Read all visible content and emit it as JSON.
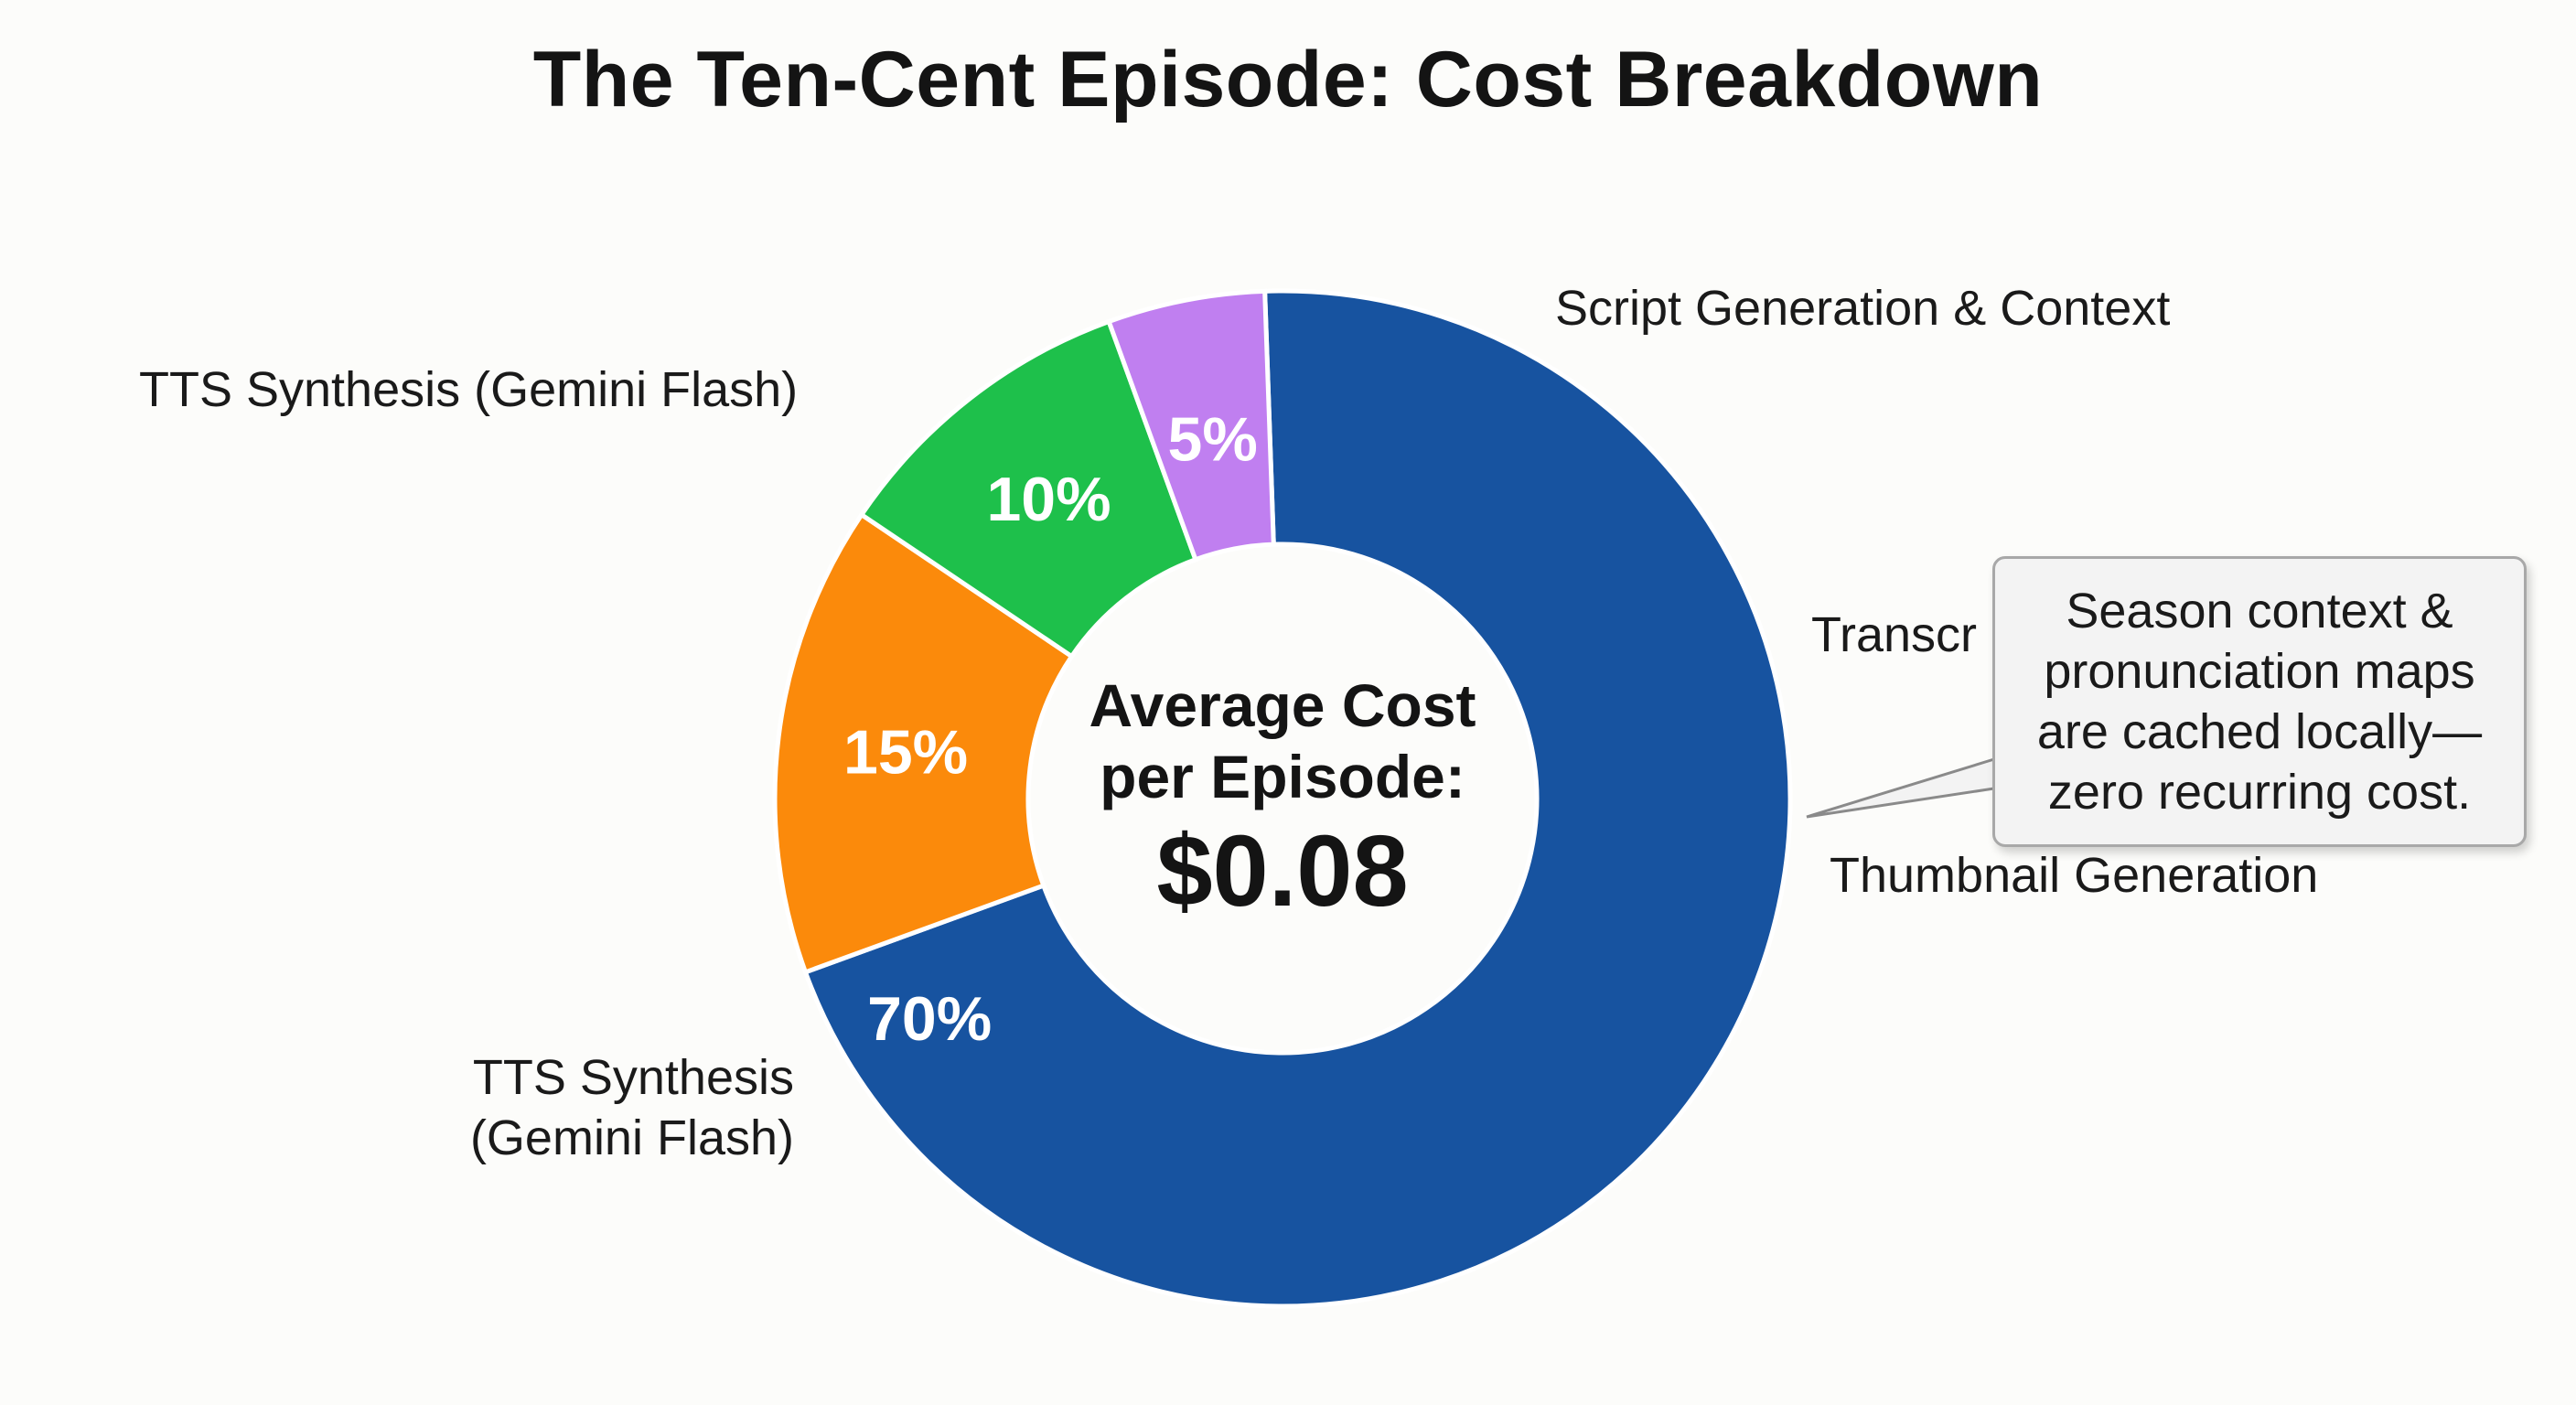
{
  "chart_data": {
    "type": "pie",
    "title": "The Ten-Cent Episode: Cost Breakdown",
    "donut": true,
    "center_text": {
      "caption_lines": [
        "Average Cost",
        "per Episode:"
      ],
      "value": "$0.08"
    },
    "slices": [
      {
        "label": "TTS Synthesis (Gemini Flash)",
        "value": 70,
        "value_label": "70%",
        "color": "#1753a0"
      },
      {
        "label": "Script Generation & Context",
        "value": 15,
        "value_label": "15%",
        "color": "#fb8a0b"
      },
      {
        "label": "Transcr",
        "value": 10,
        "value_label": "10%",
        "color": "#1ec04b"
      },
      {
        "label": "Thumbnail Generation",
        "value": 5,
        "value_label": "5%",
        "color": "#c07ff0"
      }
    ],
    "extra_labels": {
      "tts_top": "TTS Synthesis (Gemini Flash)",
      "tts_bottom_lines": [
        "TTS Synthesis",
        "(Gemini Flash)"
      ]
    },
    "annotation": {
      "lines": [
        "Season context &",
        "pronunciation maps",
        "are cached locally—",
        "zero recurring cost."
      ],
      "points_to": "Thumbnail Generation"
    }
  }
}
